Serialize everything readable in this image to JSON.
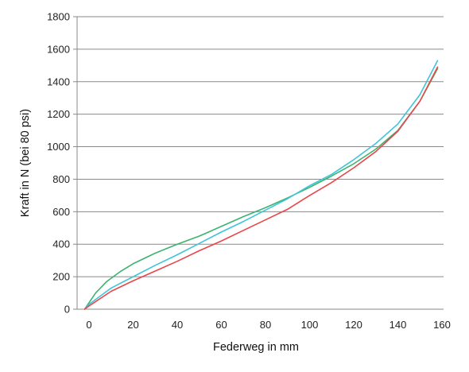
{
  "chart_data": {
    "type": "line",
    "title": "",
    "xlabel": "Federweg in mm",
    "ylabel": "Kraft in N (bei 80 psi)",
    "xlim": [
      -5,
      160
    ],
    "ylim": [
      0,
      1800
    ],
    "x_ticks": [
      0,
      20,
      40,
      60,
      80,
      100,
      120,
      140,
      160
    ],
    "y_ticks": [
      0,
      200,
      400,
      600,
      800,
      1000,
      1200,
      1400,
      1600,
      1800
    ],
    "grid": "horizontal",
    "legend": "none",
    "series": [
      {
        "color": "#3cb371",
        "points": [
          [
            -2,
            0
          ],
          [
            0,
            40
          ],
          [
            3,
            100
          ],
          [
            8,
            170
          ],
          [
            14,
            230
          ],
          [
            20,
            280
          ],
          [
            30,
            345
          ],
          [
            40,
            400
          ],
          [
            50,
            450
          ],
          [
            60,
            510
          ],
          [
            70,
            570
          ],
          [
            80,
            625
          ],
          [
            90,
            685
          ],
          [
            100,
            750
          ],
          [
            110,
            820
          ],
          [
            120,
            895
          ],
          [
            130,
            985
          ],
          [
            140,
            1100
          ],
          [
            150,
            1280
          ],
          [
            158,
            1480
          ]
        ]
      },
      {
        "color": "#40c4d8",
        "points": [
          [
            -2,
            0
          ],
          [
            0,
            30
          ],
          [
            5,
            80
          ],
          [
            10,
            130
          ],
          [
            20,
            200
          ],
          [
            30,
            270
          ],
          [
            40,
            335
          ],
          [
            50,
            405
          ],
          [
            60,
            475
          ],
          [
            70,
            540
          ],
          [
            80,
            610
          ],
          [
            90,
            680
          ],
          [
            100,
            760
          ],
          [
            110,
            830
          ],
          [
            120,
            920
          ],
          [
            130,
            1020
          ],
          [
            140,
            1140
          ],
          [
            150,
            1320
          ],
          [
            158,
            1530
          ]
        ]
      },
      {
        "color": "#e8464a",
        "points": [
          [
            -2,
            0
          ],
          [
            0,
            20
          ],
          [
            5,
            65
          ],
          [
            10,
            110
          ],
          [
            20,
            175
          ],
          [
            30,
            235
          ],
          [
            40,
            295
          ],
          [
            50,
            360
          ],
          [
            60,
            420
          ],
          [
            70,
            485
          ],
          [
            80,
            550
          ],
          [
            90,
            615
          ],
          [
            100,
            700
          ],
          [
            110,
            780
          ],
          [
            120,
            870
          ],
          [
            130,
            970
          ],
          [
            140,
            1095
          ],
          [
            150,
            1280
          ],
          [
            158,
            1490
          ]
        ]
      }
    ]
  }
}
